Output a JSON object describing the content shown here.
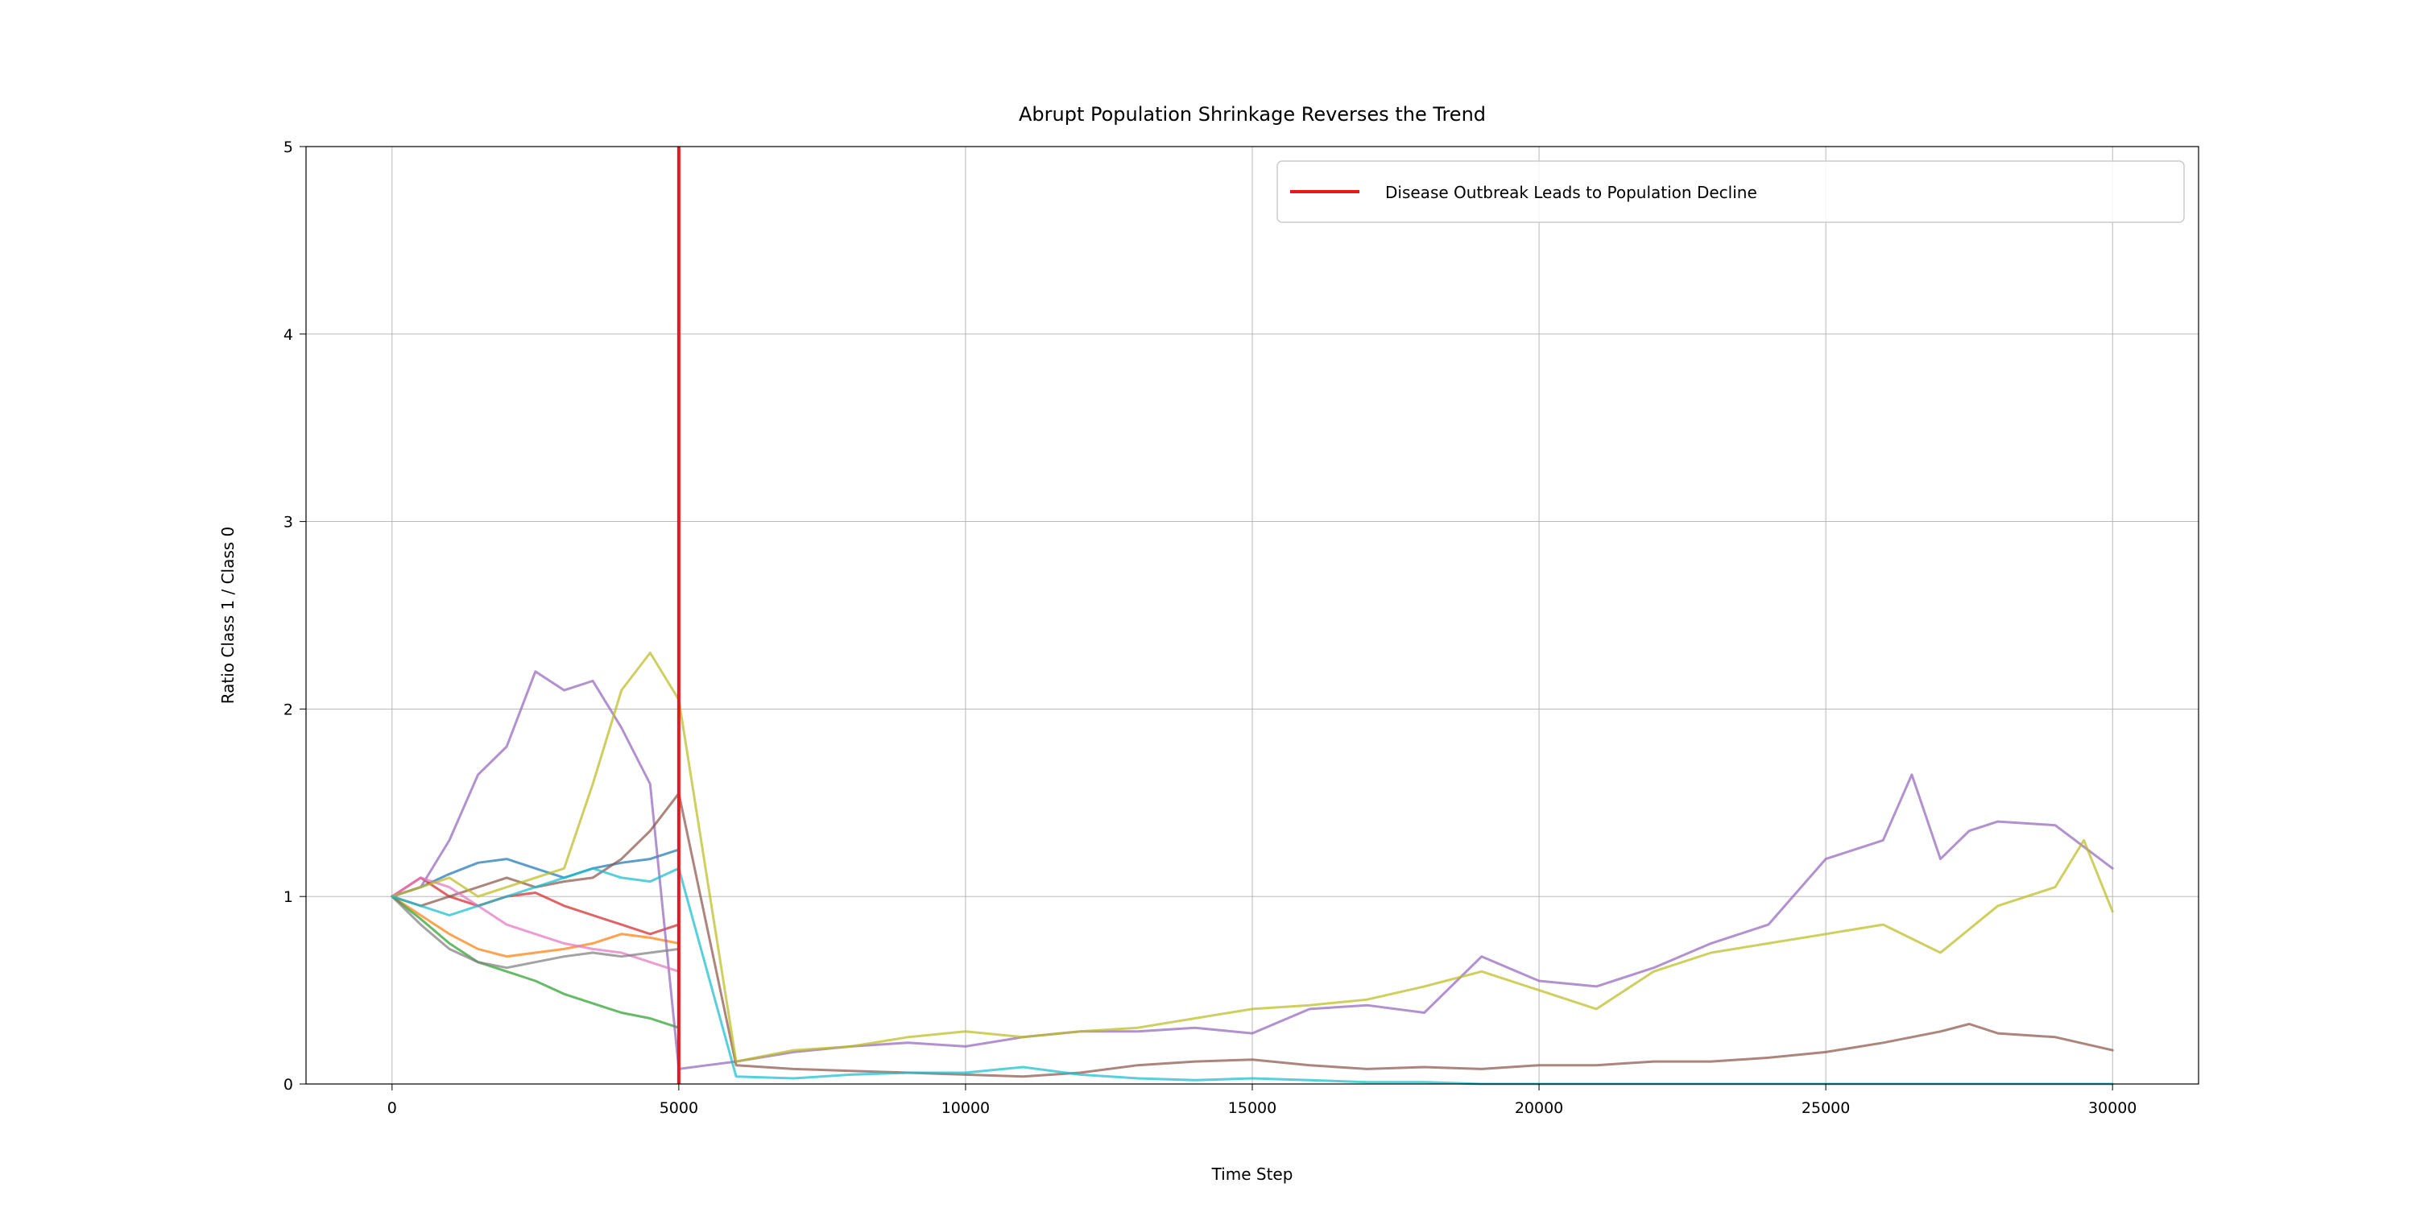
{
  "chart_data": {
    "type": "line",
    "title": "Abrupt Population Shrinkage Reverses the Trend",
    "xlabel": "Time Step",
    "ylabel": "Ratio Class 1 / Class 0",
    "xlim": [
      -1500,
      31500
    ],
    "ylim": [
      0,
      5
    ],
    "xticks": [
      0,
      5000,
      10000,
      15000,
      20000,
      25000,
      30000
    ],
    "yticks": [
      0,
      1,
      2,
      3,
      4,
      5
    ],
    "grid": true,
    "legend_position": "top-right",
    "legend": [
      {
        "label": "Disease Outbreak Leads to Population Decline",
        "color": "#e41a1c"
      }
    ],
    "event_line": {
      "x": 5000,
      "color": "#e41a1c",
      "label": "Disease Outbreak Leads to Population Decline"
    },
    "series": [
      {
        "color": "#1f77b4",
        "x": [
          0,
          500,
          1000,
          1500,
          2000,
          2500,
          3000,
          3500,
          4000,
          4500,
          5000
        ],
        "y": [
          1.0,
          1.05,
          1.12,
          1.18,
          1.2,
          1.15,
          1.1,
          1.15,
          1.18,
          1.2,
          1.25
        ]
      },
      {
        "color": "#ff7f0e",
        "x": [
          0,
          500,
          1000,
          1500,
          2000,
          2500,
          3000,
          3500,
          4000,
          4500,
          5000
        ],
        "y": [
          1.0,
          0.9,
          0.8,
          0.72,
          0.68,
          0.7,
          0.72,
          0.75,
          0.8,
          0.78,
          0.75
        ]
      },
      {
        "color": "#2ca02c",
        "x": [
          0,
          500,
          1000,
          1500,
          2000,
          2500,
          3000,
          3500,
          4000,
          4500,
          5000
        ],
        "y": [
          1.0,
          0.88,
          0.75,
          0.65,
          0.6,
          0.55,
          0.48,
          0.43,
          0.38,
          0.35,
          0.3
        ]
      },
      {
        "color": "#d62728",
        "x": [
          0,
          500,
          1000,
          1500,
          2000,
          2500,
          3000,
          3500,
          4000,
          4500,
          5000
        ],
        "y": [
          1.0,
          1.1,
          1.0,
          0.95,
          1.0,
          1.02,
          0.95,
          0.9,
          0.85,
          0.8,
          0.85
        ]
      },
      {
        "color": "#9467bd",
        "x": [
          0,
          500,
          1000,
          1500,
          2000,
          2500,
          3000,
          3500,
          4000,
          4500,
          5000,
          5500,
          6000,
          7000,
          8000,
          9000,
          10000,
          11000,
          12000,
          13000,
          14000,
          15000,
          16000,
          17000,
          18000,
          19000,
          20000,
          21000,
          22000,
          23000,
          24000,
          25000,
          26000,
          26500,
          27000,
          27500,
          28000,
          29000,
          30000
        ],
        "y": [
          1.0,
          1.05,
          1.3,
          1.65,
          1.8,
          2.2,
          2.1,
          2.15,
          1.9,
          1.6,
          0.08,
          0.1,
          0.12,
          0.17,
          0.2,
          0.22,
          0.2,
          0.25,
          0.28,
          0.28,
          0.3,
          0.27,
          0.4,
          0.42,
          0.38,
          0.68,
          0.55,
          0.52,
          0.62,
          0.75,
          0.85,
          1.2,
          1.3,
          1.65,
          1.2,
          1.35,
          1.4,
          1.38,
          1.15
        ]
      },
      {
        "color": "#8c564b",
        "x": [
          0,
          500,
          1000,
          1500,
          2000,
          2500,
          3000,
          3500,
          4000,
          4500,
          5000,
          6000,
          7000,
          8000,
          9000,
          10000,
          11000,
          12000,
          13000,
          14000,
          15000,
          16000,
          17000,
          18000,
          19000,
          20000,
          21000,
          22000,
          23000,
          24000,
          25000,
          26000,
          27000,
          27500,
          28000,
          29000,
          30000
        ],
        "y": [
          1.0,
          0.95,
          1.0,
          1.05,
          1.1,
          1.05,
          1.08,
          1.1,
          1.2,
          1.35,
          1.55,
          0.1,
          0.08,
          0.07,
          0.06,
          0.05,
          0.04,
          0.06,
          0.1,
          0.12,
          0.13,
          0.1,
          0.08,
          0.09,
          0.08,
          0.1,
          0.1,
          0.12,
          0.12,
          0.14,
          0.17,
          0.22,
          0.28,
          0.32,
          0.27,
          0.25,
          0.18
        ]
      },
      {
        "color": "#e377c2",
        "x": [
          0,
          500,
          1000,
          1500,
          2000,
          2500,
          3000,
          3500,
          4000,
          4500,
          5000
        ],
        "y": [
          1.0,
          1.1,
          1.05,
          0.95,
          0.85,
          0.8,
          0.75,
          0.72,
          0.7,
          0.65,
          0.6
        ]
      },
      {
        "color": "#7f7f7f",
        "x": [
          0,
          500,
          1000,
          1500,
          2000,
          2500,
          3000,
          3500,
          4000,
          4500,
          5000
        ],
        "y": [
          1.0,
          0.85,
          0.72,
          0.65,
          0.62,
          0.65,
          0.68,
          0.7,
          0.68,
          0.7,
          0.72
        ]
      },
      {
        "color": "#bcbd22",
        "x": [
          0,
          500,
          1000,
          1500,
          2000,
          2500,
          3000,
          3500,
          4000,
          4500,
          5000,
          6000,
          7000,
          8000,
          9000,
          10000,
          11000,
          12000,
          13000,
          14000,
          15000,
          16000,
          17000,
          18000,
          19000,
          20000,
          21000,
          22000,
          23000,
          24000,
          25000,
          26000,
          27000,
          28000,
          29000,
          29500,
          30000
        ],
        "y": [
          1.0,
          1.05,
          1.1,
          1.0,
          1.05,
          1.1,
          1.15,
          1.6,
          2.1,
          2.3,
          2.05,
          0.12,
          0.18,
          0.2,
          0.25,
          0.28,
          0.25,
          0.28,
          0.3,
          0.35,
          0.4,
          0.42,
          0.45,
          0.52,
          0.6,
          0.5,
          0.4,
          0.6,
          0.7,
          0.75,
          0.8,
          0.85,
          0.7,
          0.95,
          1.05,
          1.3,
          0.92
        ]
      },
      {
        "color": "#17becf",
        "x": [
          0,
          500,
          1000,
          1500,
          2000,
          2500,
          3000,
          3500,
          4000,
          4500,
          5000,
          6000,
          7000,
          8000,
          9000,
          10000,
          11000,
          12000,
          13000,
          14000,
          15000,
          16000,
          17000,
          18000,
          19000,
          20000,
          22000,
          24000,
          26000,
          28000,
          30000
        ],
        "y": [
          1.0,
          0.95,
          0.9,
          0.95,
          1.0,
          1.05,
          1.1,
          1.15,
          1.1,
          1.08,
          1.15,
          0.04,
          0.03,
          0.05,
          0.06,
          0.06,
          0.09,
          0.05,
          0.03,
          0.02,
          0.03,
          0.02,
          0.01,
          0.01,
          0.0,
          0.0,
          0.0,
          0.0,
          0.0,
          0.0,
          0.0
        ]
      }
    ]
  }
}
